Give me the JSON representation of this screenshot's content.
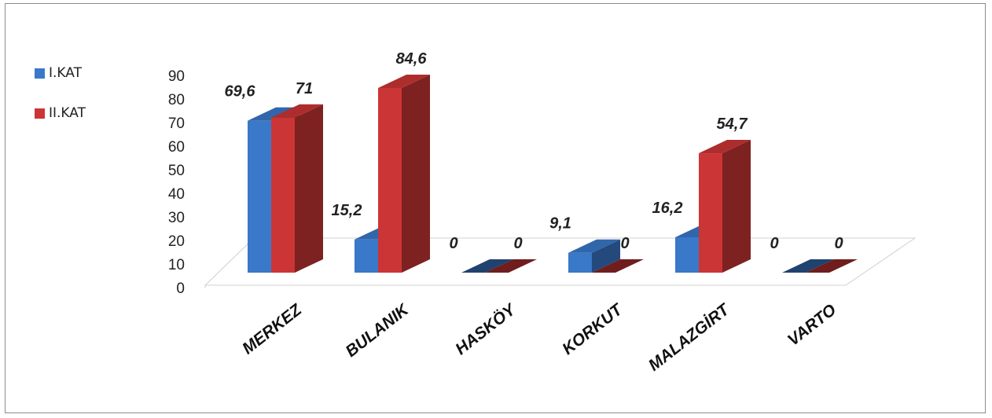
{
  "chart_data": {
    "type": "bar",
    "categories": [
      "MERKEZ",
      "BULANIK",
      "HASKÖY",
      "KORKUT",
      "MALAZGİRT",
      "VARTO"
    ],
    "series": [
      {
        "name": "I.KAT",
        "values": [
          69.6,
          15.2,
          0,
          9.1,
          16.2,
          0
        ],
        "labels": [
          "69,6",
          "15,2",
          "0",
          "9,1",
          "16,2",
          "0"
        ]
      },
      {
        "name": "II.KAT",
        "values": [
          71,
          84.6,
          0,
          0,
          54.7,
          0
        ],
        "labels": [
          "71",
          "84,6",
          "0",
          "0",
          "54,7",
          "0"
        ]
      }
    ],
    "yticks": [
      "0",
      "10",
      "20",
      "30",
      "40",
      "50",
      "60",
      "70",
      "80",
      "90"
    ],
    "ylim": [
      0,
      90
    ],
    "legend_position": "left",
    "style": "3d-clustered-column",
    "colors": {
      "I.KAT": "#3a78c9",
      "II.KAT": "#cc3535"
    }
  }
}
